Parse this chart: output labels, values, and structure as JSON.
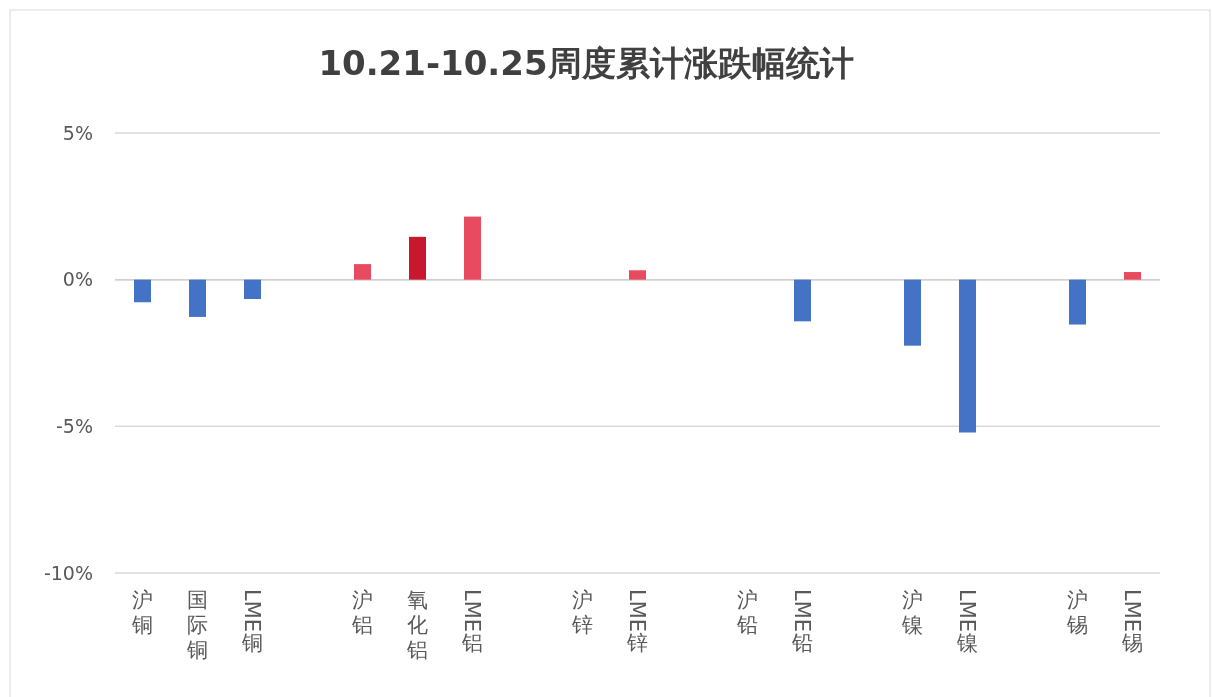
{
  "chart_data": {
    "type": "bar",
    "title": "10.21-10.25周度累计涨跌幅统计",
    "categories": [
      "沪铜",
      "国际铜",
      "LME铜",
      null,
      "沪铝",
      "氧化铝",
      "LME铝",
      null,
      "沪锌",
      "LME锌",
      null,
      "沪铅",
      "LME铅",
      null,
      "沪镍",
      "LME镍",
      null,
      "沪锡",
      "LME锡"
    ],
    "values": [
      -0.77,
      -1.27,
      -0.66,
      null,
      0.53,
      1.46,
      2.15,
      null,
      0,
      0.32,
      null,
      0,
      -1.42,
      null,
      -2.25,
      -5.21,
      null,
      -1.53,
      0.26
    ],
    "colors": [
      "#4472c4",
      "#4472c4",
      "#4472c4",
      null,
      "#e84a5f",
      "#c8182f",
      "#e84a5f",
      null,
      "#e84a5f",
      "#e84a5f",
      null,
      "#4472c4",
      "#4472c4",
      null,
      "#4472c4",
      "#4472c4",
      null,
      "#4472c4",
      "#e84a5f"
    ],
    "ylim": [
      -10,
      5
    ],
    "yticks": [
      {
        "value": -10,
        "label": "-10%"
      },
      {
        "value": -5,
        "label": "-5%"
      },
      {
        "value": 0,
        "label": "0%"
      },
      {
        "value": 5,
        "label": "5%"
      }
    ],
    "grid": "y"
  }
}
